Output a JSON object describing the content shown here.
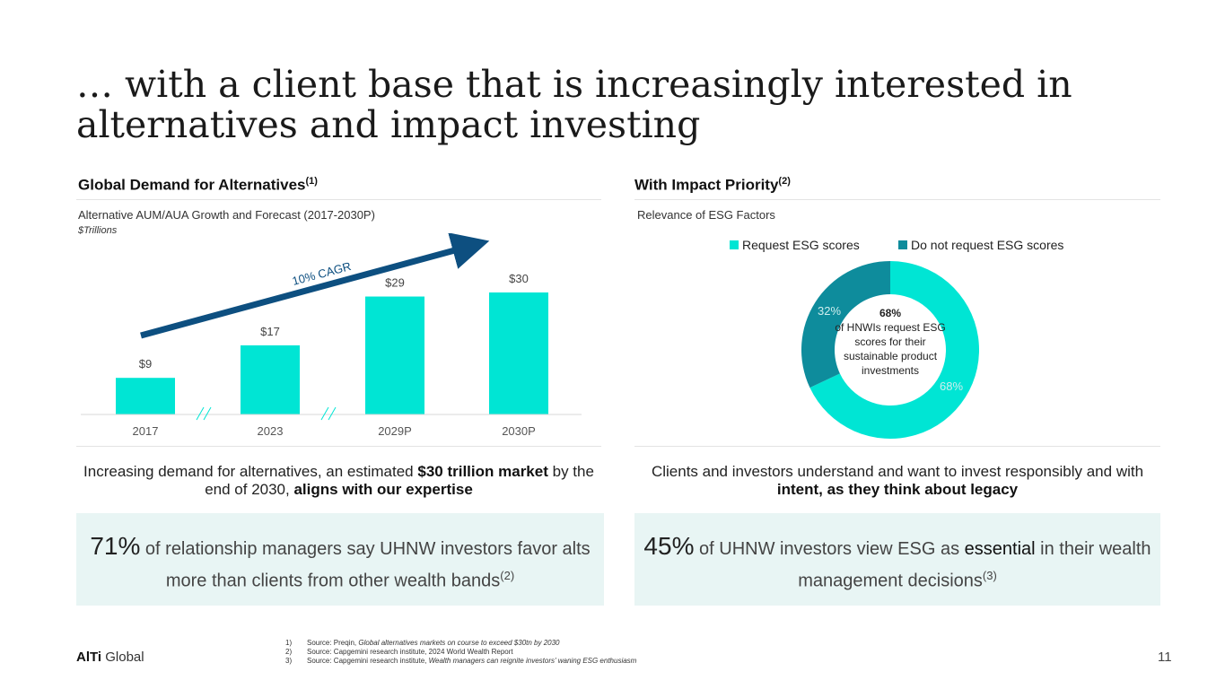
{
  "title_line1": "… with a client base that is increasingly interested in",
  "title_line2": "alternatives and impact investing",
  "left": {
    "heading": "Global Demand for Alternatives",
    "heading_sup": "(1)",
    "subtitle": "Alternative AUM/AUA Growth and Forecast (2017-2030P)",
    "unit": "$Trillions",
    "cagr_label": "10% CAGR",
    "body_pre": "Increasing demand for alternatives, an estimated ",
    "body_bold1": "$30 trillion market",
    "body_mid": " by the end of 2030, ",
    "body_bold2": "aligns with our expertise",
    "callout_big": "71%",
    "callout_text": " of relationship managers say UHNW investors favor alts more than clients from other wealth bands",
    "callout_sup": "(2)"
  },
  "right": {
    "heading": "With Impact Priority",
    "heading_sup": "(2)",
    "subtitle": "Relevance of ESG Factors",
    "legend": [
      "Request ESG scores",
      "Do not request ESG scores"
    ],
    "center_pct": "68%",
    "center_text": "of HNWIs request ESG scores for their sustainable product investments",
    "body_pre": "Clients and investors understand and want to invest responsibly and with ",
    "body_bold": "intent, as they think about legacy",
    "callout_big": "45%",
    "callout_pre": " of UHNW investors view ESG as ",
    "callout_ess": "essential",
    "callout_post": " in their wealth management decisions",
    "callout_sup": "(3)"
  },
  "chart_data": [
    {
      "type": "bar",
      "title": "Alternative AUM/AUA Growth and Forecast (2017-2030P)",
      "ylabel": "$Trillions",
      "categories": [
        "2017",
        "2023",
        "2029P",
        "2030P"
      ],
      "values": [
        9,
        17,
        29,
        30
      ],
      "data_labels": [
        "$9",
        "$17",
        "$29",
        "$30"
      ],
      "ylim": [
        0,
        30
      ],
      "color": "#00e5d4",
      "annotation": "10% CAGR"
    },
    {
      "type": "pie",
      "title": "Relevance of ESG Factors",
      "labels": [
        "Request ESG scores",
        "Do not request ESG scores"
      ],
      "values": [
        68,
        32
      ],
      "data_labels": [
        "68%",
        "32%"
      ],
      "colors": [
        "#00e5d4",
        "#0e8c9c"
      ]
    }
  ],
  "footnotes": [
    {
      "num": "1)",
      "pre": "Source: Preqin, ",
      "ital": "Global alternatives markets on course to exceed $30tn by 2030"
    },
    {
      "num": "2)",
      "pre": "Source: Capgemini research institute, 2024 World Wealth Report",
      "ital": ""
    },
    {
      "num": "3)",
      "pre": "Source: Capgemini research institute, ",
      "ital": "Wealth managers can reignite investors' waning ESG enthusiasm"
    }
  ],
  "logo_bold": "AlTi",
  "logo_text": " Global",
  "page_number": "11",
  "colors": {
    "accent": "#00e5d4",
    "dark_teal": "#0e8c9c",
    "arrow": "#0d4f80",
    "callout_bg": "#e8f5f4"
  }
}
